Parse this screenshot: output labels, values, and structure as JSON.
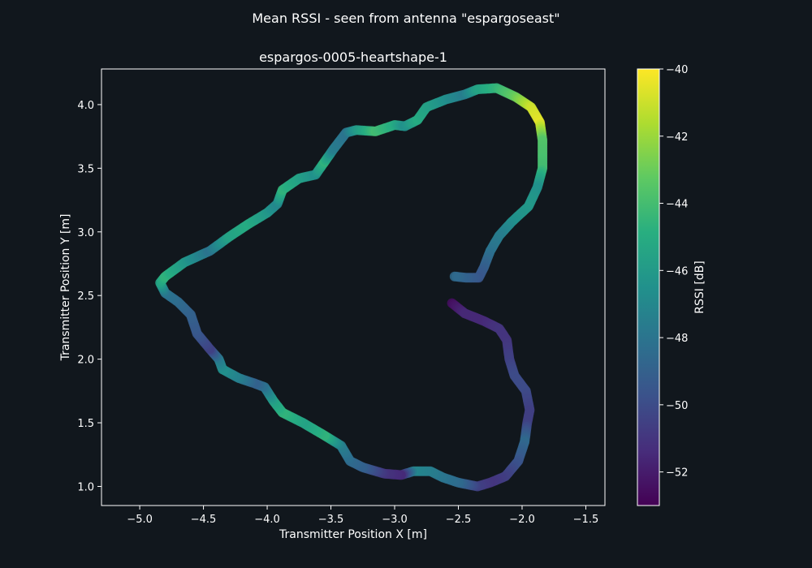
{
  "chart_data": {
    "type": "scatter",
    "title": "Mean RSSI - seen from antenna \"espargoseast\"",
    "subtitle": "espargos-0005-heartshape-1",
    "xlabel": "Transmitter Position X [m]",
    "ylabel": "Transmitter Position Y [m]",
    "xlim": [
      -5.3,
      -1.35
    ],
    "ylim": [
      0.85,
      4.28
    ],
    "xticks": [
      -5.0,
      -4.5,
      -4.0,
      -3.5,
      -3.0,
      -2.5,
      -2.0,
      -1.5
    ],
    "xtick_labels": [
      "−5.0",
      "−4.5",
      "−4.0",
      "−3.5",
      "−3.0",
      "−2.5",
      "−2.0",
      "−1.5"
    ],
    "yticks": [
      1.0,
      1.5,
      2.0,
      2.5,
      3.0,
      3.5,
      4.0
    ],
    "ytick_labels": [
      "1.0",
      "1.5",
      "2.0",
      "2.5",
      "3.0",
      "3.5",
      "4.0"
    ],
    "grid": false,
    "colorbar": {
      "label": "RSSI [dB]",
      "colormap": "viridis",
      "range": [
        -53,
        -40
      ],
      "ticks": [
        -52,
        -50,
        -48,
        -46,
        -44,
        -42,
        -40
      ],
      "tick_labels": [
        "−52",
        "−50",
        "−48",
        "−46",
        "−44",
        "−42",
        "−40"
      ]
    },
    "trajectory": [
      {
        "x": -2.55,
        "y": 2.44,
        "rssi": -52.5
      },
      {
        "x": -2.45,
        "y": 2.36,
        "rssi": -51.5
      },
      {
        "x": -2.3,
        "y": 2.3,
        "rssi": -51.5
      },
      {
        "x": -2.18,
        "y": 2.24,
        "rssi": -51.0
      },
      {
        "x": -2.12,
        "y": 2.15,
        "rssi": -51.0
      },
      {
        "x": -2.1,
        "y": 2.0,
        "rssi": -50.5
      },
      {
        "x": -2.06,
        "y": 1.87,
        "rssi": -50.0
      },
      {
        "x": -1.97,
        "y": 1.75,
        "rssi": -50.0
      },
      {
        "x": -1.94,
        "y": 1.6,
        "rssi": -50.5
      },
      {
        "x": -1.96,
        "y": 1.5,
        "rssi": -50.5
      },
      {
        "x": -1.98,
        "y": 1.35,
        "rssi": -48.5
      },
      {
        "x": -2.03,
        "y": 1.2,
        "rssi": -49.5
      },
      {
        "x": -2.13,
        "y": 1.08,
        "rssi": -50.5
      },
      {
        "x": -2.25,
        "y": 1.03,
        "rssi": -51.0
      },
      {
        "x": -2.35,
        "y": 1.0,
        "rssi": -50.5
      },
      {
        "x": -2.5,
        "y": 1.03,
        "rssi": -48.5
      },
      {
        "x": -2.62,
        "y": 1.07,
        "rssi": -48.0
      },
      {
        "x": -2.72,
        "y": 1.12,
        "rssi": -47.5
      },
      {
        "x": -2.85,
        "y": 1.12,
        "rssi": -47.0
      },
      {
        "x": -2.95,
        "y": 1.09,
        "rssi": -51.5
      },
      {
        "x": -3.08,
        "y": 1.1,
        "rssi": -51.0
      },
      {
        "x": -3.25,
        "y": 1.15,
        "rssi": -49.0
      },
      {
        "x": -3.35,
        "y": 1.2,
        "rssi": -48.5
      },
      {
        "x": -3.42,
        "y": 1.32,
        "rssi": -47.5
      },
      {
        "x": -3.55,
        "y": 1.4,
        "rssi": -44.5
      },
      {
        "x": -3.72,
        "y": 1.5,
        "rssi": -45.5
      },
      {
        "x": -3.88,
        "y": 1.58,
        "rssi": -44.5
      },
      {
        "x": -3.95,
        "y": 1.67,
        "rssi": -45.5
      },
      {
        "x": -4.02,
        "y": 1.78,
        "rssi": -48.0
      },
      {
        "x": -4.1,
        "y": 1.81,
        "rssi": -49.0
      },
      {
        "x": -4.22,
        "y": 1.85,
        "rssi": -47.5
      },
      {
        "x": -4.35,
        "y": 1.92,
        "rssi": -46.5
      },
      {
        "x": -4.38,
        "y": 2.0,
        "rssi": -47.5
      },
      {
        "x": -4.45,
        "y": 2.08,
        "rssi": -50.5
      },
      {
        "x": -4.55,
        "y": 2.2,
        "rssi": -49.5
      },
      {
        "x": -4.6,
        "y": 2.35,
        "rssi": -49.0
      },
      {
        "x": -4.7,
        "y": 2.45,
        "rssi": -48.5
      },
      {
        "x": -4.8,
        "y": 2.52,
        "rssi": -48.0
      },
      {
        "x": -4.84,
        "y": 2.6,
        "rssi": -45.5
      },
      {
        "x": -4.8,
        "y": 2.65,
        "rssi": -44.5
      },
      {
        "x": -4.65,
        "y": 2.76,
        "rssi": -46.0
      },
      {
        "x": -4.45,
        "y": 2.85,
        "rssi": -48.0
      },
      {
        "x": -4.3,
        "y": 2.96,
        "rssi": -45.5
      },
      {
        "x": -4.15,
        "y": 3.06,
        "rssi": -45.0
      },
      {
        "x": -4.0,
        "y": 3.15,
        "rssi": -46.0
      },
      {
        "x": -3.92,
        "y": 3.22,
        "rssi": -47.0
      },
      {
        "x": -3.88,
        "y": 3.33,
        "rssi": -44.5
      },
      {
        "x": -3.75,
        "y": 3.42,
        "rssi": -45.5
      },
      {
        "x": -3.62,
        "y": 3.45,
        "rssi": -46.5
      },
      {
        "x": -3.55,
        "y": 3.55,
        "rssi": -44.5
      },
      {
        "x": -3.48,
        "y": 3.65,
        "rssi": -47.5
      },
      {
        "x": -3.38,
        "y": 3.78,
        "rssi": -48.0
      },
      {
        "x": -3.3,
        "y": 3.8,
        "rssi": -46.0
      },
      {
        "x": -3.15,
        "y": 3.79,
        "rssi": -44.0
      },
      {
        "x": -3.0,
        "y": 3.84,
        "rssi": -45.0
      },
      {
        "x": -2.92,
        "y": 3.83,
        "rssi": -46.5
      },
      {
        "x": -2.82,
        "y": 3.88,
        "rssi": -45.0
      },
      {
        "x": -2.75,
        "y": 3.98,
        "rssi": -45.5
      },
      {
        "x": -2.6,
        "y": 4.04,
        "rssi": -46.5
      },
      {
        "x": -2.45,
        "y": 4.08,
        "rssi": -47.5
      },
      {
        "x": -2.35,
        "y": 4.12,
        "rssi": -45.5
      },
      {
        "x": -2.2,
        "y": 4.13,
        "rssi": -44.5
      },
      {
        "x": -2.05,
        "y": 4.06,
        "rssi": -43.0
      },
      {
        "x": -1.93,
        "y": 3.98,
        "rssi": -41.0
      },
      {
        "x": -1.86,
        "y": 3.86,
        "rssi": -40.5
      },
      {
        "x": -1.84,
        "y": 3.72,
        "rssi": -43.5
      },
      {
        "x": -1.84,
        "y": 3.5,
        "rssi": -44.0
      },
      {
        "x": -1.88,
        "y": 3.35,
        "rssi": -46.5
      },
      {
        "x": -1.95,
        "y": 3.2,
        "rssi": -46.0
      },
      {
        "x": -2.08,
        "y": 3.08,
        "rssi": -46.5
      },
      {
        "x": -2.18,
        "y": 2.97,
        "rssi": -47.5
      },
      {
        "x": -2.25,
        "y": 2.85,
        "rssi": -48.0
      },
      {
        "x": -2.3,
        "y": 2.72,
        "rssi": -49.0
      },
      {
        "x": -2.34,
        "y": 2.64,
        "rssi": -49.5
      },
      {
        "x": -2.44,
        "y": 2.64,
        "rssi": -49.0
      },
      {
        "x": -2.53,
        "y": 2.65,
        "rssi": -48.5
      }
    ]
  }
}
